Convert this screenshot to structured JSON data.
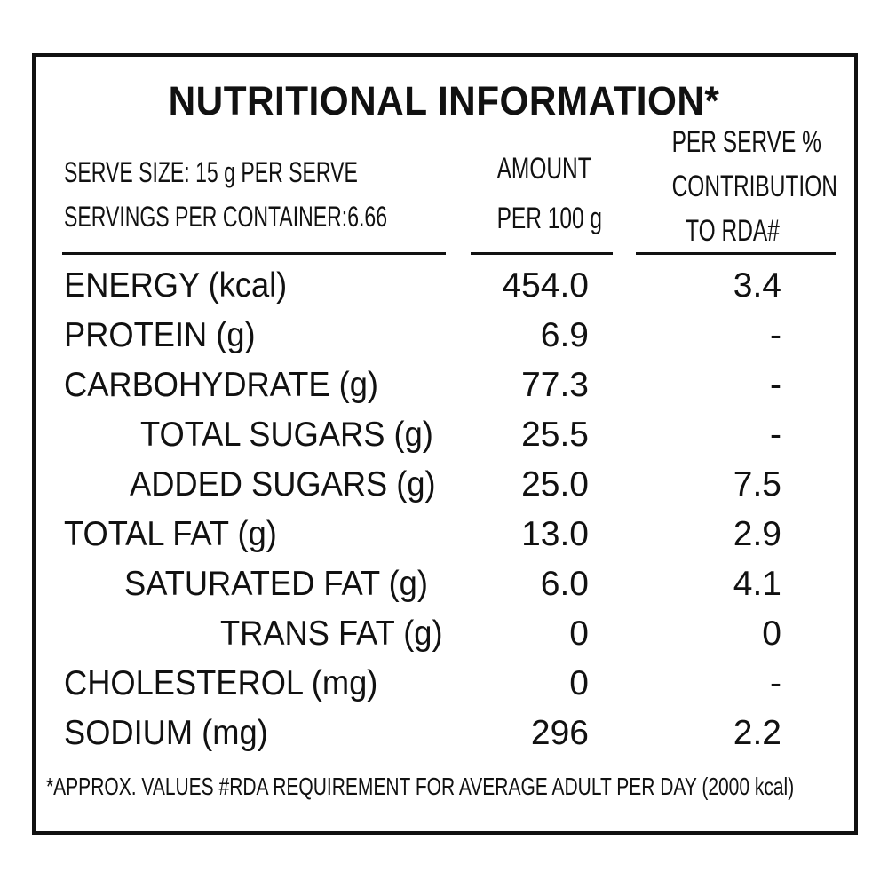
{
  "title": "NUTRITIONAL INFORMATION*",
  "serve": {
    "size": "SERVE SIZE: 15 g PER SERVE",
    "servings": "SERVINGS PER CONTAINER:6.66"
  },
  "headers": {
    "amount_line1": "AMOUNT",
    "amount_line2": "PER 100 g",
    "rda_line1": "PER SERVE %",
    "rda_line2": "CONTRIBUTION",
    "rda_line3": "TO RDA#"
  },
  "rows": [
    {
      "label": "ENERGY (kcal)",
      "amount": "454.0",
      "rda": "3.4"
    },
    {
      "label": "PROTEIN (g)",
      "amount": "6.9",
      "rda": "-"
    },
    {
      "label": "CARBOHYDRATE (g)",
      "amount": "77.3",
      "rda": "-"
    },
    {
      "label": "TOTAL SUGARS (g)",
      "amount": "25.5",
      "rda": "-"
    },
    {
      "label": "ADDED SUGARS (g)",
      "amount": "25.0",
      "rda": "7.5"
    },
    {
      "label": "TOTAL FAT (g)",
      "amount": "13.0",
      "rda": "2.9"
    },
    {
      "label": "SATURATED FAT (g)",
      "amount": "6.0",
      "rda": "4.1"
    },
    {
      "label": "TRANS FAT (g)",
      "amount": "0",
      "rda": "0"
    },
    {
      "label": "CHOLESTEROL (mg)",
      "amount": "0",
      "rda": "-"
    },
    {
      "label": "SODIUM (mg)",
      "amount": "296",
      "rda": "2.2"
    }
  ],
  "footer": "*APPROX. VALUES  #RDA REQUIREMENT FOR AVERAGE ADULT PER DAY (2000 kcal)",
  "colors": {
    "ink": "#111111",
    "background": "#ffffff"
  }
}
